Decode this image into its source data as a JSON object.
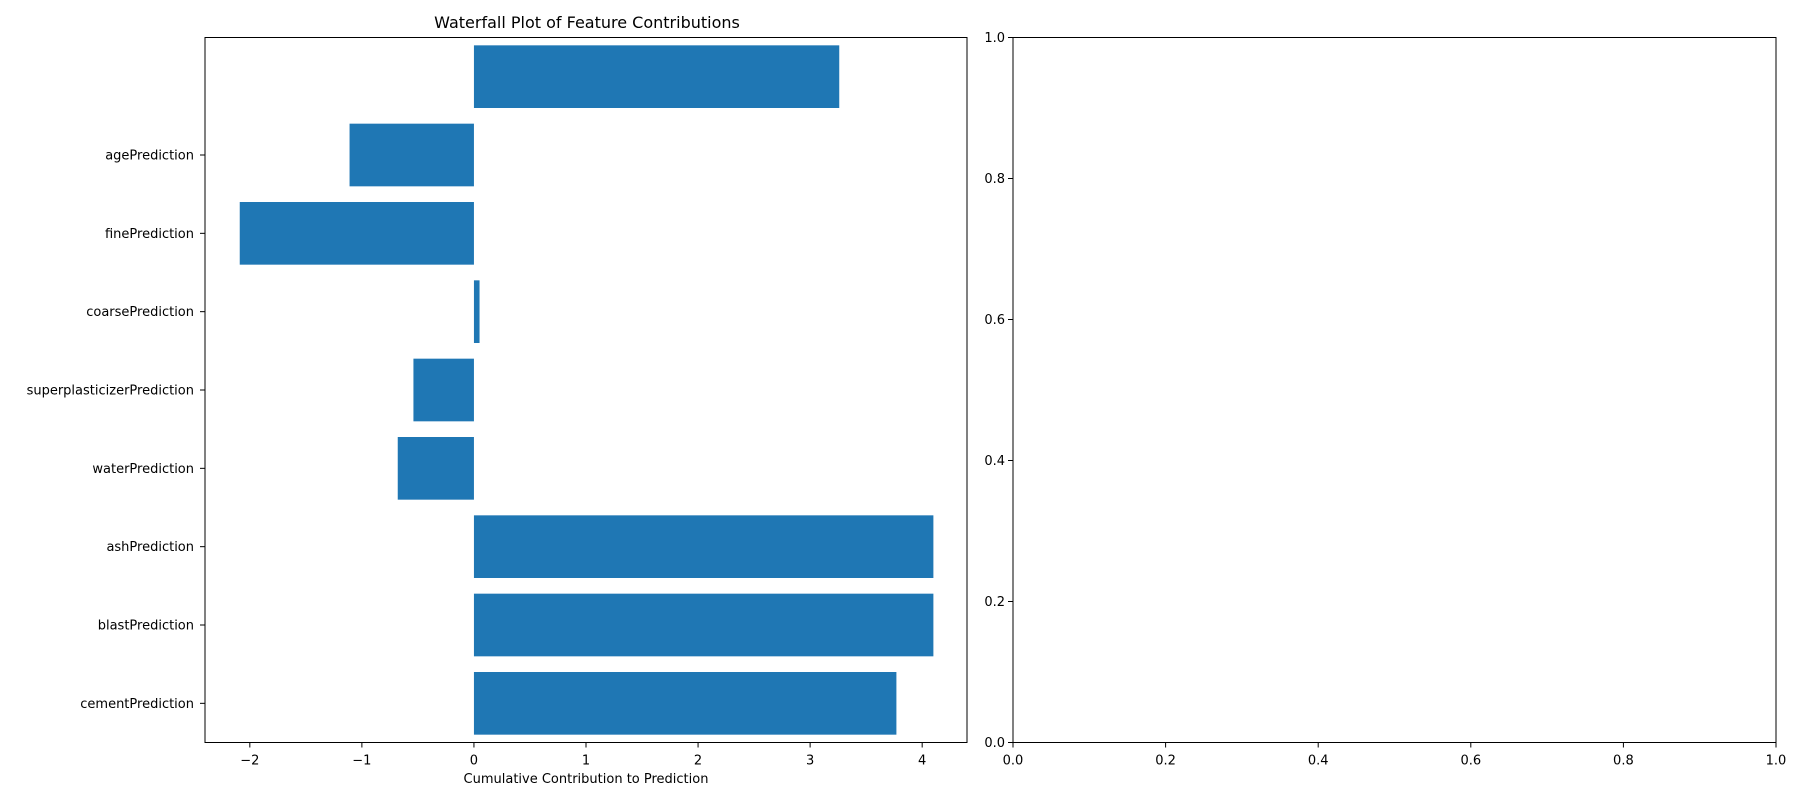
{
  "chart_data": [
    {
      "type": "bar",
      "orientation": "horizontal",
      "title": "Waterfall Plot of Feature Contributions",
      "xlabel": "Cumulative Contribution to Prediction",
      "ylabel": "",
      "xlim": [
        -2.4,
        4.4
      ],
      "xticks": [
        -2,
        -1,
        0,
        1,
        2,
        3,
        4
      ],
      "xtick_labels": [
        "−2",
        "−1",
        "0",
        "1",
        "2",
        "3",
        "4"
      ],
      "categories": [
        "cementPrediction",
        "blastPrediction",
        "ashPrediction",
        "waterPrediction",
        "superplasticizerPrediction",
        "coarsePrediction",
        "finePrediction",
        "agePrediction",
        ""
      ],
      "values": [
        3.77,
        4.1,
        4.1,
        -0.68,
        -0.54,
        0.05,
        -2.09,
        -1.11,
        3.26
      ],
      "bar_color": "#1f77b4",
      "grid": false
    },
    {
      "type": "scatter",
      "title": "",
      "xlabel": "",
      "ylabel": "",
      "xlim": [
        0,
        1
      ],
      "ylim": [
        0,
        1
      ],
      "xticks": [
        0,
        0.2,
        0.4,
        0.6,
        0.8,
        1
      ],
      "xtick_labels": [
        "0.0",
        "0.2",
        "0.4",
        "0.6",
        "0.8",
        "1.0"
      ],
      "yticks": [
        0,
        0.2,
        0.4,
        0.6,
        0.8,
        1
      ],
      "ytick_labels": [
        "0.0",
        "0.2",
        "0.4",
        "0.6",
        "0.8",
        "1.0"
      ],
      "series": [],
      "grid": false
    }
  ]
}
